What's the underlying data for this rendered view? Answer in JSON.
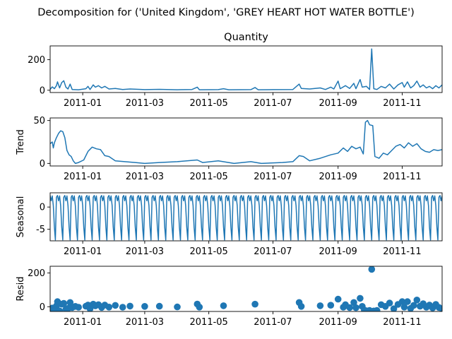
{
  "figure": {
    "suptitle": "Decomposition for ('United Kingdom', 'GREY HEART HOT WATER BOTTLE')",
    "series_color": "#1f77b4"
  },
  "chart_data": [
    {
      "type": "line",
      "name": "observed",
      "title": "Quantity",
      "ylabel": "",
      "x_range": [
        "2010-12-01",
        "2011-12-09"
      ],
      "ylim": [
        -15,
        290
      ],
      "yticks": [
        0,
        200
      ],
      "xticks": [
        "2011-01",
        "2011-03",
        "2011-05",
        "2011-07",
        "2011-09",
        "2011-11"
      ],
      "points": [
        [
          "2010-12-01",
          6
        ],
        [
          "2010-12-03",
          22
        ],
        [
          "2010-12-05",
          10
        ],
        [
          "2010-12-07",
          30
        ],
        [
          "2010-12-08",
          55
        ],
        [
          "2010-12-10",
          15
        ],
        [
          "2010-12-12",
          50
        ],
        [
          "2010-12-14",
          62
        ],
        [
          "2010-12-16",
          20
        ],
        [
          "2010-12-18",
          8
        ],
        [
          "2010-12-20",
          40
        ],
        [
          "2010-12-22",
          5
        ],
        [
          "2010-12-28",
          3
        ],
        [
          "2011-01-04",
          10
        ],
        [
          "2011-01-06",
          25
        ],
        [
          "2011-01-08",
          5
        ],
        [
          "2011-01-11",
          35
        ],
        [
          "2011-01-13",
          20
        ],
        [
          "2011-01-16",
          30
        ],
        [
          "2011-01-19",
          15
        ],
        [
          "2011-01-22",
          25
        ],
        [
          "2011-01-26",
          8
        ],
        [
          "2011-02-01",
          12
        ],
        [
          "2011-02-08",
          5
        ],
        [
          "2011-02-15",
          8
        ],
        [
          "2011-03-01",
          4
        ],
        [
          "2011-03-15",
          6
        ],
        [
          "2011-04-01",
          3
        ],
        [
          "2011-04-15",
          5
        ],
        [
          "2011-04-20",
          20
        ],
        [
          "2011-04-22",
          3
        ],
        [
          "2011-05-10",
          4
        ],
        [
          "2011-05-15",
          10
        ],
        [
          "2011-05-20",
          3
        ],
        [
          "2011-06-10",
          4
        ],
        [
          "2011-06-14",
          18
        ],
        [
          "2011-06-17",
          3
        ],
        [
          "2011-07-01",
          4
        ],
        [
          "2011-07-20",
          5
        ],
        [
          "2011-07-26",
          40
        ],
        [
          "2011-07-28",
          12
        ],
        [
          "2011-08-05",
          8
        ],
        [
          "2011-08-15",
          15
        ],
        [
          "2011-08-20",
          5
        ],
        [
          "2011-08-25",
          20
        ],
        [
          "2011-08-28",
          8
        ],
        [
          "2011-09-01",
          60
        ],
        [
          "2011-09-03",
          10
        ],
        [
          "2011-09-08",
          30
        ],
        [
          "2011-09-12",
          12
        ],
        [
          "2011-09-16",
          45
        ],
        [
          "2011-09-18",
          10
        ],
        [
          "2011-09-22",
          70
        ],
        [
          "2011-09-24",
          20
        ],
        [
          "2011-09-28",
          25
        ],
        [
          "2011-10-01",
          5
        ],
        [
          "2011-10-03",
          270
        ],
        [
          "2011-10-05",
          10
        ],
        [
          "2011-10-08",
          5
        ],
        [
          "2011-10-12",
          25
        ],
        [
          "2011-10-16",
          15
        ],
        [
          "2011-10-20",
          40
        ],
        [
          "2011-10-24",
          8
        ],
        [
          "2011-10-28",
          35
        ],
        [
          "2011-11-01",
          50
        ],
        [
          "2011-11-03",
          20
        ],
        [
          "2011-11-06",
          55
        ],
        [
          "2011-11-09",
          15
        ],
        [
          "2011-11-12",
          30
        ],
        [
          "2011-11-15",
          60
        ],
        [
          "2011-11-18",
          20
        ],
        [
          "2011-11-21",
          35
        ],
        [
          "2011-11-24",
          15
        ],
        [
          "2011-11-27",
          25
        ],
        [
          "2011-11-30",
          10
        ],
        [
          "2011-12-03",
          30
        ],
        [
          "2011-12-06",
          15
        ],
        [
          "2011-12-09",
          35
        ]
      ]
    },
    {
      "type": "line",
      "name": "trend",
      "title": "",
      "ylabel": "Trend",
      "x_range": [
        "2010-12-01",
        "2011-12-09"
      ],
      "ylim": [
        -3,
        53
      ],
      "yticks": [
        0,
        50
      ],
      "xticks": [
        "2011-01",
        "2011-03",
        "2011-05",
        "2011-07",
        "2011-09",
        "2011-11"
      ],
      "points": [
        [
          "2010-12-01",
          23
        ],
        [
          "2010-12-03",
          25
        ],
        [
          "2010-12-04",
          18
        ],
        [
          "2010-12-05",
          24
        ],
        [
          "2010-12-07",
          30
        ],
        [
          "2010-12-09",
          35
        ],
        [
          "2010-12-11",
          38
        ],
        [
          "2010-12-13",
          37
        ],
        [
          "2010-12-15",
          30
        ],
        [
          "2010-12-17",
          15
        ],
        [
          "2010-12-19",
          10
        ],
        [
          "2010-12-21",
          8
        ],
        [
          "2010-12-23",
          3
        ],
        [
          "2010-12-25",
          0
        ],
        [
          "2010-12-28",
          1
        ],
        [
          "2011-01-02",
          4
        ],
        [
          "2011-01-06",
          14
        ],
        [
          "2011-01-10",
          19
        ],
        [
          "2011-01-14",
          17
        ],
        [
          "2011-01-18",
          16
        ],
        [
          "2011-01-22",
          9
        ],
        [
          "2011-01-26",
          8
        ],
        [
          "2011-02-01",
          3
        ],
        [
          "2011-02-10",
          2
        ],
        [
          "2011-02-20",
          1
        ],
        [
          "2011-03-01",
          0
        ],
        [
          "2011-03-15",
          1
        ],
        [
          "2011-04-01",
          2
        ],
        [
          "2011-04-20",
          4
        ],
        [
          "2011-04-25",
          1
        ],
        [
          "2011-05-10",
          3
        ],
        [
          "2011-05-25",
          0
        ],
        [
          "2011-06-10",
          2
        ],
        [
          "2011-06-20",
          0
        ],
        [
          "2011-07-10",
          1
        ],
        [
          "2011-07-20",
          2
        ],
        [
          "2011-07-26",
          9
        ],
        [
          "2011-07-30",
          8
        ],
        [
          "2011-08-05",
          3
        ],
        [
          "2011-08-15",
          6
        ],
        [
          "2011-08-25",
          10
        ],
        [
          "2011-09-01",
          12
        ],
        [
          "2011-09-06",
          18
        ],
        [
          "2011-09-10",
          14
        ],
        [
          "2011-09-14",
          20
        ],
        [
          "2011-09-18",
          17
        ],
        [
          "2011-09-22",
          19
        ],
        [
          "2011-09-25",
          11
        ],
        [
          "2011-09-27",
          48
        ],
        [
          "2011-09-29",
          50
        ],
        [
          "2011-10-01",
          45
        ],
        [
          "2011-10-04",
          44
        ],
        [
          "2011-10-06",
          8
        ],
        [
          "2011-10-10",
          6
        ],
        [
          "2011-10-14",
          12
        ],
        [
          "2011-10-18",
          10
        ],
        [
          "2011-10-22",
          15
        ],
        [
          "2011-10-26",
          20
        ],
        [
          "2011-10-30",
          22
        ],
        [
          "2011-11-03",
          18
        ],
        [
          "2011-11-07",
          24
        ],
        [
          "2011-11-11",
          20
        ],
        [
          "2011-11-15",
          23
        ],
        [
          "2011-11-19",
          17
        ],
        [
          "2011-11-23",
          14
        ],
        [
          "2011-11-27",
          13
        ],
        [
          "2011-12-01",
          16
        ],
        [
          "2011-12-05",
          15
        ],
        [
          "2011-12-09",
          16
        ]
      ]
    },
    {
      "type": "line",
      "name": "seasonal",
      "title": "",
      "ylabel": "Seasonal",
      "x_range": [
        "2010-12-01",
        "2011-12-09"
      ],
      "ylim": [
        -7.6,
        3.2
      ],
      "yticks": [
        -5,
        0
      ],
      "xticks": [
        "2011-01",
        "2011-03",
        "2011-05",
        "2011-07",
        "2011-09",
        "2011-11"
      ],
      "period_days": 7,
      "weekly_pattern": [
        2.6,
        1.4,
        2.5,
        0.3,
        -4.5,
        -7.4,
        2.2
      ]
    },
    {
      "type": "scatter",
      "name": "resid",
      "title": "",
      "ylabel": "Resid",
      "x_range": [
        "2010-12-01",
        "2011-12-09"
      ],
      "ylim": [
        -28,
        240
      ],
      "yticks": [
        0,
        200
      ],
      "xticks": [
        "2011-01",
        "2011-03",
        "2011-05",
        "2011-07",
        "2011-09",
        "2011-11"
      ],
      "points": [
        [
          "2010-12-01",
          -12
        ],
        [
          "2010-12-03",
          -8
        ],
        [
          "2010-12-05",
          -20
        ],
        [
          "2010-12-07",
          5
        ],
        [
          "2010-12-08",
          30
        ],
        [
          "2010-12-10",
          -25
        ],
        [
          "2010-12-12",
          15
        ],
        [
          "2010-12-14",
          20
        ],
        [
          "2010-12-16",
          -15
        ],
        [
          "2010-12-18",
          -10
        ],
        [
          "2010-12-20",
          25
        ],
        [
          "2010-12-22",
          -5
        ],
        [
          "2010-12-25",
          2
        ],
        [
          "2010-12-28",
          -3
        ],
        [
          "2011-01-04",
          3
        ],
        [
          "2011-01-06",
          10
        ],
        [
          "2011-01-08",
          -12
        ],
        [
          "2011-01-11",
          15
        ],
        [
          "2011-01-13",
          5
        ],
        [
          "2011-01-16",
          12
        ],
        [
          "2011-01-19",
          -4
        ],
        [
          "2011-01-22",
          10
        ],
        [
          "2011-01-26",
          -2
        ],
        [
          "2011-02-01",
          8
        ],
        [
          "2011-02-08",
          -3
        ],
        [
          "2011-02-15",
          4
        ],
        [
          "2011-03-01",
          2
        ],
        [
          "2011-03-15",
          3
        ],
        [
          "2011-04-01",
          -1
        ],
        [
          "2011-04-20",
          16
        ],
        [
          "2011-04-22",
          -2
        ],
        [
          "2011-05-15",
          6
        ],
        [
          "2011-06-14",
          15
        ],
        [
          "2011-07-26",
          25
        ],
        [
          "2011-07-28",
          2
        ],
        [
          "2011-08-15",
          6
        ],
        [
          "2011-08-25",
          9
        ],
        [
          "2011-09-01",
          45
        ],
        [
          "2011-09-06",
          -3
        ],
        [
          "2011-09-08",
          12
        ],
        [
          "2011-09-12",
          -5
        ],
        [
          "2011-09-16",
          25
        ],
        [
          "2011-09-18",
          -6
        ],
        [
          "2011-09-22",
          50
        ],
        [
          "2011-09-24",
          2
        ],
        [
          "2011-09-26",
          -20
        ],
        [
          "2011-09-28",
          -24
        ],
        [
          "2011-10-01",
          -22
        ],
        [
          "2011-10-03",
          222
        ],
        [
          "2011-10-05",
          -25
        ],
        [
          "2011-10-08",
          -22
        ],
        [
          "2011-10-12",
          12
        ],
        [
          "2011-10-16",
          2
        ],
        [
          "2011-10-20",
          22
        ],
        [
          "2011-10-24",
          -12
        ],
        [
          "2011-10-28",
          14
        ],
        [
          "2011-11-01",
          30
        ],
        [
          "2011-11-03",
          -2
        ],
        [
          "2011-11-06",
          30
        ],
        [
          "2011-11-09",
          -10
        ],
        [
          "2011-11-12",
          8
        ],
        [
          "2011-11-15",
          40
        ],
        [
          "2011-11-18",
          3
        ],
        [
          "2011-11-21",
          18
        ],
        [
          "2011-11-24",
          -3
        ],
        [
          "2011-11-27",
          10
        ],
        [
          "2011-11-30",
          -7
        ],
        [
          "2011-12-03",
          14
        ],
        [
          "2011-12-06",
          -4
        ],
        [
          "2011-12-09",
          -12
        ]
      ]
    }
  ]
}
